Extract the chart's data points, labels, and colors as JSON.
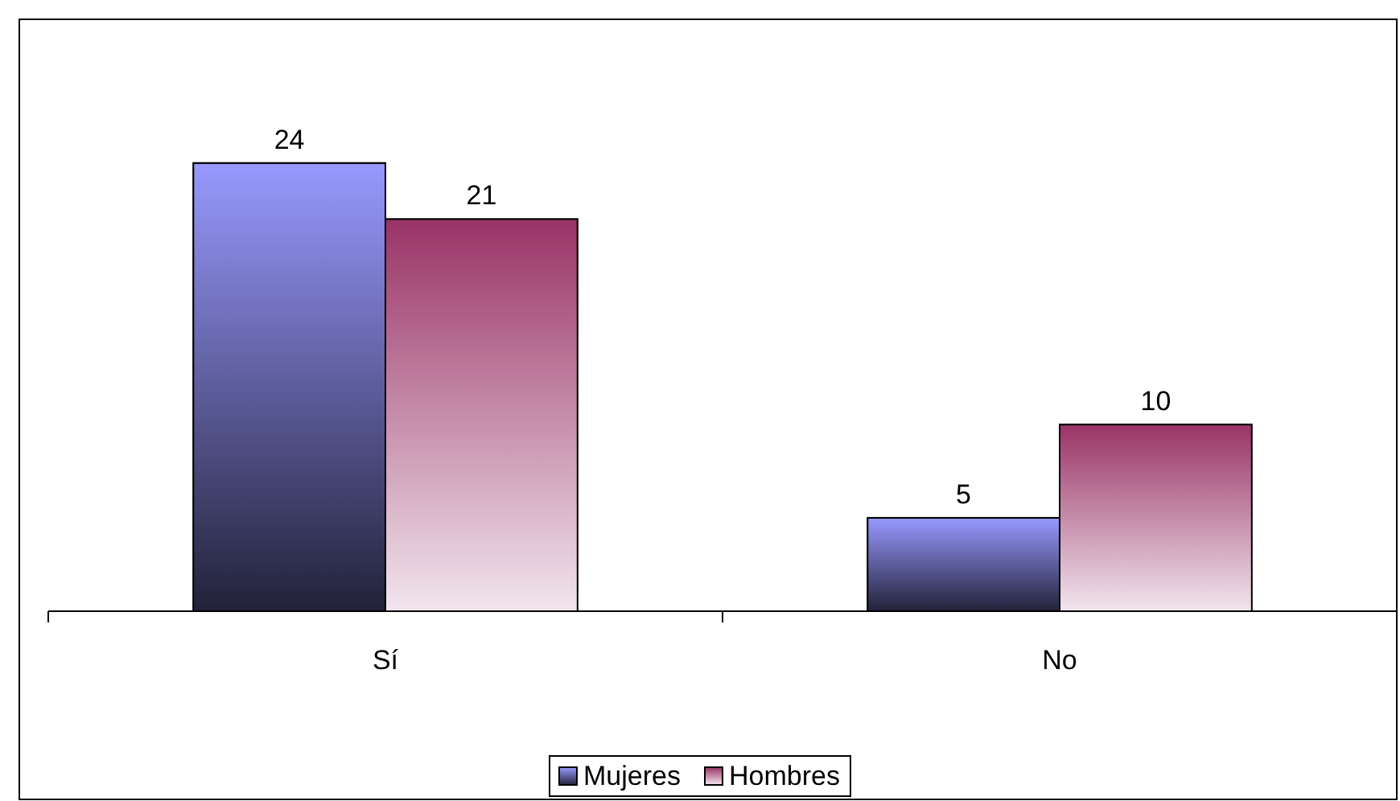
{
  "chart_data": {
    "type": "bar",
    "categories": [
      "Sí",
      "No"
    ],
    "series": [
      {
        "name": "Mujeres",
        "color": "#9999ff",
        "values": [
          24,
          5
        ]
      },
      {
        "name": "Hombres",
        "color": "#993366",
        "values": [
          21,
          10
        ]
      }
    ],
    "data_labels": true,
    "legend": "bottom"
  }
}
